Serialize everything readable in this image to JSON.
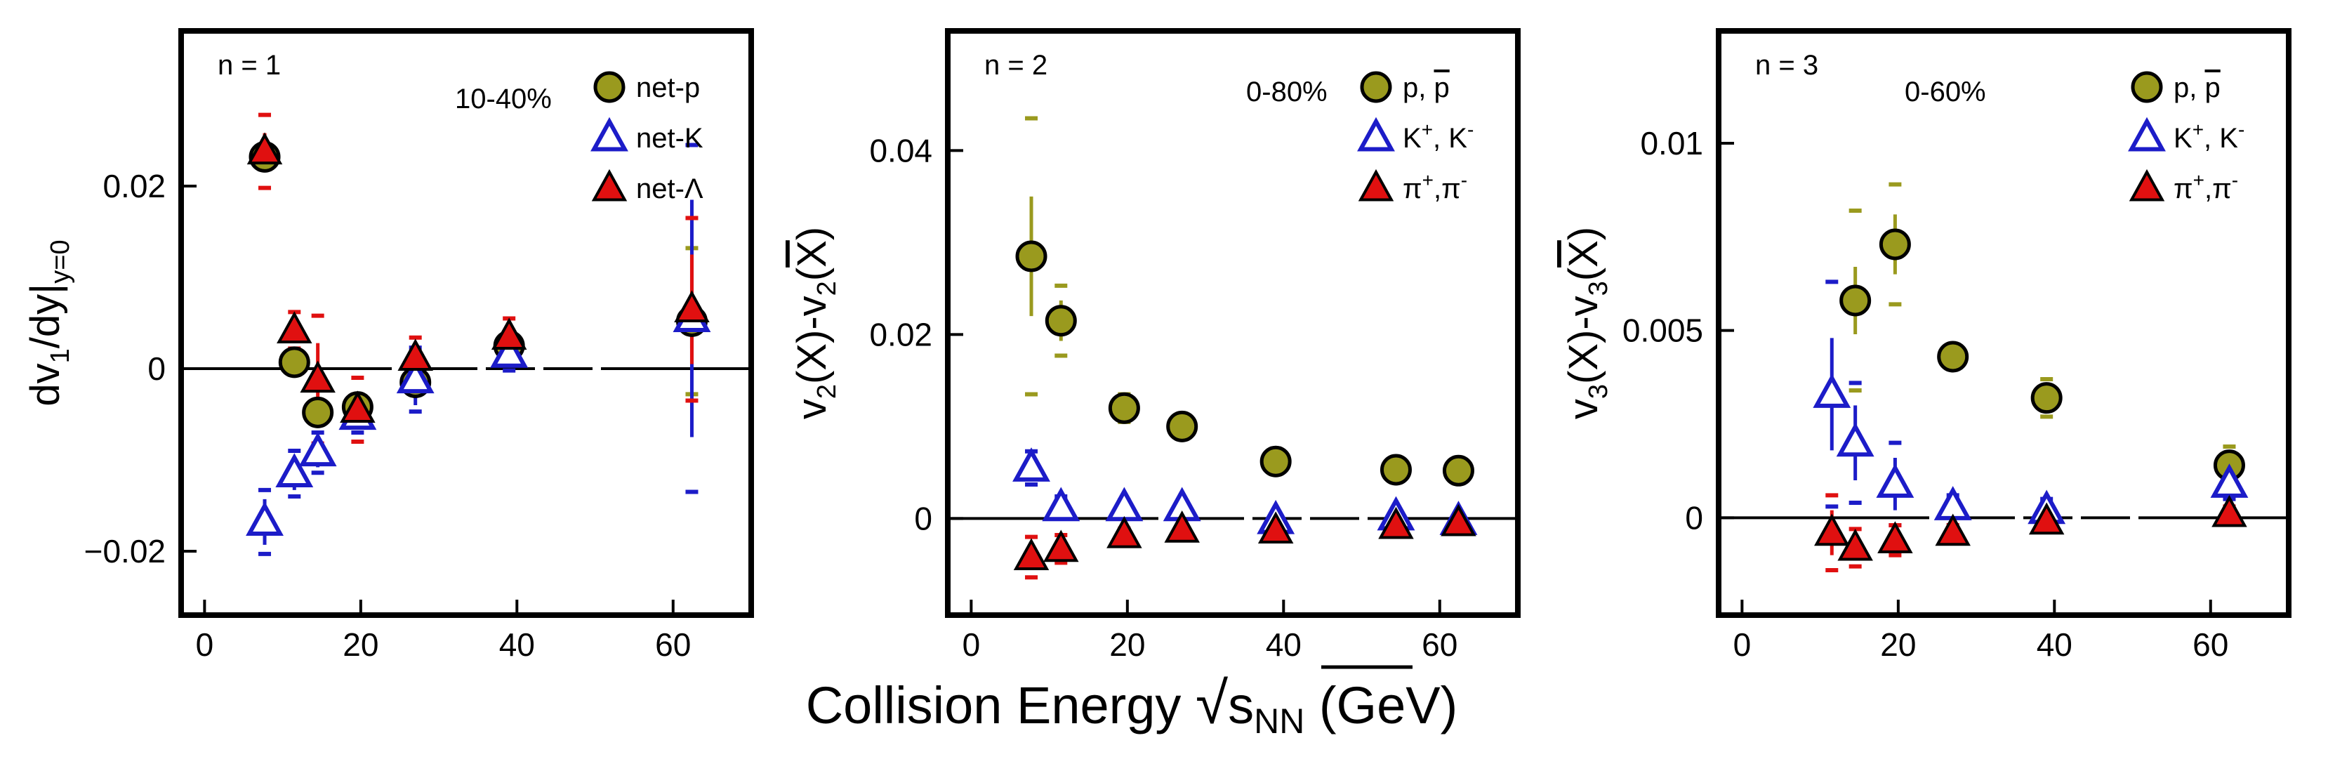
{
  "x_axis_title": {
    "main": "Collision Energy ",
    "sqrt_symbol": "√",
    "s": "s",
    "sub": "NN",
    "unit": " (GeV)"
  },
  "chart_data": [
    {
      "type": "scatter",
      "panel_label": "n = 1",
      "centrality": "10-40%",
      "ylabel": {
        "base": "dv",
        "sub1": "1",
        "mid": "/dy|",
        "sub2": "y=0"
      },
      "xlim": [
        -3,
        70
      ],
      "ylim": [
        -0.027,
        0.037
      ],
      "x_ticks": [
        0,
        20,
        40,
        60
      ],
      "x_tick_labels": [
        "0",
        "20",
        "40",
        "60"
      ],
      "y_ticks": [
        -0.02,
        0,
        0.02
      ],
      "y_tick_labels": [
        "−0.02",
        "0",
        "0.02"
      ],
      "zero_line": true,
      "legend": [
        {
          "label": "net-p",
          "marker": "circle",
          "color": "#9a9a1e"
        },
        {
          "label": "net-K",
          "marker": "triangle-open",
          "color": "#1c1cc8"
        },
        {
          "label": "net-Λ",
          "marker": "triangle",
          "color": "#e01010"
        }
      ],
      "series": [
        {
          "name": "net-p",
          "marker": "circle",
          "color": "#9a9a1e",
          "points": [
            {
              "x": 7.7,
              "y": 0.0232,
              "err": 0.0008,
              "sys": 0.0013
            },
            {
              "x": 11.5,
              "y": 0.0007,
              "err": 0.0005,
              "sys": 0.0008
            },
            {
              "x": 14.5,
              "y": -0.0048,
              "err": 0.0006,
              "sys": 0.001
            },
            {
              "x": 19.6,
              "y": -0.0042,
              "err": 0.0005,
              "sys": 0.0008
            },
            {
              "x": 27,
              "y": -0.0015,
              "err": 0.0006,
              "sys": 0.0009
            },
            {
              "x": 39,
              "y": 0.0025,
              "err": 0.0006,
              "sys": 0.001
            },
            {
              "x": 62.4,
              "y": 0.0052,
              "err": 0.003,
              "sys": 0.008
            }
          ]
        },
        {
          "name": "net-K",
          "marker": "triangle-open",
          "color": "#1c1cc8",
          "points": [
            {
              "x": 7.7,
              "y": -0.0168,
              "err": 0.0025,
              "sys": 0.0035
            },
            {
              "x": 11.5,
              "y": -0.0115,
              "err": 0.0018,
              "sys": 0.0025
            },
            {
              "x": 14.5,
              "y": -0.0092,
              "err": 0.0016,
              "sys": 0.0022
            },
            {
              "x": 19.6,
              "y": -0.0052,
              "err": 0.0012,
              "sys": 0.0018
            },
            {
              "x": 27,
              "y": -0.0012,
              "err": 0.0028,
              "sys": 0.0035
            },
            {
              "x": 39,
              "y": 0.0016,
              "err": 0.0011,
              "sys": 0.0018
            },
            {
              "x": 62.4,
              "y": 0.0055,
              "err": 0.013,
              "sys": 0.019
            }
          ]
        },
        {
          "name": "net-Λ",
          "marker": "triangle",
          "color": "#e01010",
          "points": [
            {
              "x": 7.7,
              "y": 0.0238,
              "err": 0.002,
              "sys": 0.004
            },
            {
              "x": 11.5,
              "y": 0.0042,
              "err": 0.0012,
              "sys": 0.002
            },
            {
              "x": 14.5,
              "y": -0.0012,
              "err": 0.004,
              "sys": 0.007
            },
            {
              "x": 19.6,
              "y": -0.0045,
              "err": 0.002,
              "sys": 0.0035
            },
            {
              "x": 27,
              "y": 0.0012,
              "err": 0.0012,
              "sys": 0.0022
            },
            {
              "x": 39,
              "y": 0.0035,
              "err": 0.0012,
              "sys": 0.002
            },
            {
              "x": 62.4,
              "y": 0.0065,
              "err": 0.006,
              "sys": 0.01
            }
          ]
        }
      ]
    },
    {
      "type": "scatter",
      "panel_label": "n = 2",
      "centrality": "0-80%",
      "ylabel": {
        "base": "v",
        "sub1": "2",
        "mid": "(X)-v",
        "sub2": "2",
        "end": "(",
        "bar": "X",
        "close": ")"
      },
      "xlim": [
        -3,
        70
      ],
      "ylim": [
        -0.0105,
        0.053
      ],
      "x_ticks": [
        0,
        20,
        40,
        60
      ],
      "x_tick_labels": [
        "0",
        "20",
        "40",
        "60"
      ],
      "y_ticks": [
        0,
        0.02,
        0.04
      ],
      "y_tick_labels": [
        "0",
        "0.02",
        "0.04"
      ],
      "zero_line": true,
      "legend": [
        {
          "label": "p, ",
          "label_bar": "p",
          "marker": "circle",
          "color": "#9a9a1e"
        },
        {
          "label": "K",
          "sup": "+",
          "label2": ", K",
          "sup2": "-",
          "marker": "triangle-open",
          "color": "#1c1cc8"
        },
        {
          "label": "π",
          "sup": "+",
          "label2": ",π",
          "sup2": "-",
          "marker": "triangle",
          "color": "#e01010"
        }
      ],
      "series": [
        {
          "name": "p, p̄",
          "marker": "circle",
          "color": "#9a9a1e",
          "points": [
            {
              "x": 7.7,
              "y": 0.0285,
              "err": 0.0065,
              "sys": 0.015
            },
            {
              "x": 11.5,
              "y": 0.0215,
              "err": 0.0022,
              "sys": 0.0038
            },
            {
              "x": 19.6,
              "y": 0.012,
              "err": 0.0008,
              "sys": 0.0015
            },
            {
              "x": 27,
              "y": 0.01,
              "err": 0.0005,
              "sys": 0.0008
            },
            {
              "x": 39,
              "y": 0.0062,
              "err": 0.0004,
              "sys": 0.0007
            },
            {
              "x": 54.4,
              "y": 0.0053,
              "err": 0.0004,
              "sys": 0.0006
            },
            {
              "x": 62.4,
              "y": 0.0052,
              "err": 0.0005,
              "sys": 0.0007
            }
          ]
        },
        {
          "name": "K+, K-",
          "marker": "triangle-open",
          "color": "#1c1cc8",
          "points": [
            {
              "x": 7.7,
              "y": 0.0055,
              "err": 0.0012,
              "sys": 0.0018
            },
            {
              "x": 11.5,
              "y": 0.0012,
              "err": 0.0008,
              "sys": 0.0012
            },
            {
              "x": 19.6,
              "y": 0.0012,
              "err": 0.0005,
              "sys": 0.0008
            },
            {
              "x": 27,
              "y": 0.0012,
              "err": 0.0004,
              "sys": 0.0006
            },
            {
              "x": 39,
              "y": -0.0002,
              "err": 0.0003,
              "sys": 0.0005
            },
            {
              "x": 54.4,
              "y": 0.0002,
              "err": 0.0003,
              "sys": 0.0005
            },
            {
              "x": 62.4,
              "y": -0.0003,
              "err": 0.0003,
              "sys": 0.0005
            }
          ]
        },
        {
          "name": "π+, π-",
          "marker": "triangle",
          "color": "#e01010",
          "points": [
            {
              "x": 7.7,
              "y": -0.0042,
              "err": 0.001,
              "sys": 0.0022
            },
            {
              "x": 11.5,
              "y": -0.0033,
              "err": 0.0008,
              "sys": 0.0015
            },
            {
              "x": 19.6,
              "y": -0.0018,
              "err": 0.0004,
              "sys": 0.0007
            },
            {
              "x": 27,
              "y": -0.0012,
              "err": 0.0003,
              "sys": 0.0005
            },
            {
              "x": 39,
              "y": -0.0013,
              "err": 0.0003,
              "sys": 0.0005
            },
            {
              "x": 54.4,
              "y": -0.0008,
              "err": 0.0003,
              "sys": 0.0005
            },
            {
              "x": 62.4,
              "y": -0.0005,
              "err": 0.0003,
              "sys": 0.0005
            }
          ]
        }
      ]
    },
    {
      "type": "scatter",
      "panel_label": "n = 3",
      "centrality": "0-60%",
      "ylabel": {
        "base": "v",
        "sub1": "3",
        "mid": "(X)-v",
        "sub2": "3",
        "end": "(",
        "bar": "X",
        "close": ")"
      },
      "xlim": [
        -3,
        70
      ],
      "ylim": [
        -0.0026,
        0.013
      ],
      "x_ticks": [
        0,
        20,
        40,
        60
      ],
      "x_tick_labels": [
        "0",
        "20",
        "40",
        "60"
      ],
      "y_ticks": [
        0,
        0.005,
        0.01
      ],
      "y_tick_labels": [
        "0",
        "0.005",
        "0.01"
      ],
      "zero_line": true,
      "legend": [
        {
          "label": "p, ",
          "label_bar": "p",
          "marker": "circle",
          "color": "#9a9a1e"
        },
        {
          "label": "K",
          "sup": "+",
          "label2": ", K",
          "sup2": "-",
          "marker": "triangle-open",
          "color": "#1c1cc8"
        },
        {
          "label": "π",
          "sup": "+",
          "label2": ",π",
          "sup2": "-",
          "marker": "triangle",
          "color": "#e01010"
        }
      ],
      "series": [
        {
          "name": "p, p̄",
          "marker": "circle",
          "color": "#9a9a1e",
          "points": [
            {
              "x": 14.5,
              "y": 0.0058,
              "err": 0.0009,
              "sys": 0.0024
            },
            {
              "x": 19.6,
              "y": 0.0073,
              "err": 0.0008,
              "sys": 0.0016
            },
            {
              "x": 27,
              "y": 0.0043,
              "err": 0.0002,
              "sys": 0.0003
            },
            {
              "x": 39,
              "y": 0.0032,
              "err": 0.0003,
              "sys": 0.0005
            },
            {
              "x": 62.4,
              "y": 0.0014,
              "err": 0.0003,
              "sys": 0.0005
            }
          ]
        },
        {
          "name": "K+, K-",
          "marker": "triangle-open",
          "color": "#1c1cc8",
          "points": [
            {
              "x": 11.5,
              "y": 0.0033,
              "err": 0.0015,
              "sys": 0.003
            },
            {
              "x": 14.5,
              "y": 0.002,
              "err": 0.001,
              "sys": 0.0016
            },
            {
              "x": 19.6,
              "y": 0.0009,
              "err": 0.0007,
              "sys": 0.0011
            },
            {
              "x": 27,
              "y": 0.0003,
              "err": 0.0002,
              "sys": 0.0003
            },
            {
              "x": 39,
              "y": 0.0002,
              "err": 0.0002,
              "sys": 0.0003
            },
            {
              "x": 62.4,
              "y": 0.0009,
              "err": 0.0002,
              "sys": 0.0004
            }
          ]
        },
        {
          "name": "π+, π-",
          "marker": "triangle",
          "color": "#e01010",
          "points": [
            {
              "x": 11.5,
              "y": -0.0004,
              "err": 0.0006,
              "sys": 0.001
            },
            {
              "x": 14.5,
              "y": -0.0008,
              "err": 0.0003,
              "sys": 0.0005
            },
            {
              "x": 19.6,
              "y": -0.0006,
              "err": 0.0002,
              "sys": 0.0004
            },
            {
              "x": 27,
              "y": -0.0004,
              "err": 0.0001,
              "sys": 0.0002
            },
            {
              "x": 39,
              "y": -0.0001,
              "err": 0.0001,
              "sys": 0.0002
            },
            {
              "x": 62.4,
              "y": 0.0001,
              "err": 0.0001,
              "sys": 0.0002
            }
          ]
        }
      ]
    }
  ]
}
